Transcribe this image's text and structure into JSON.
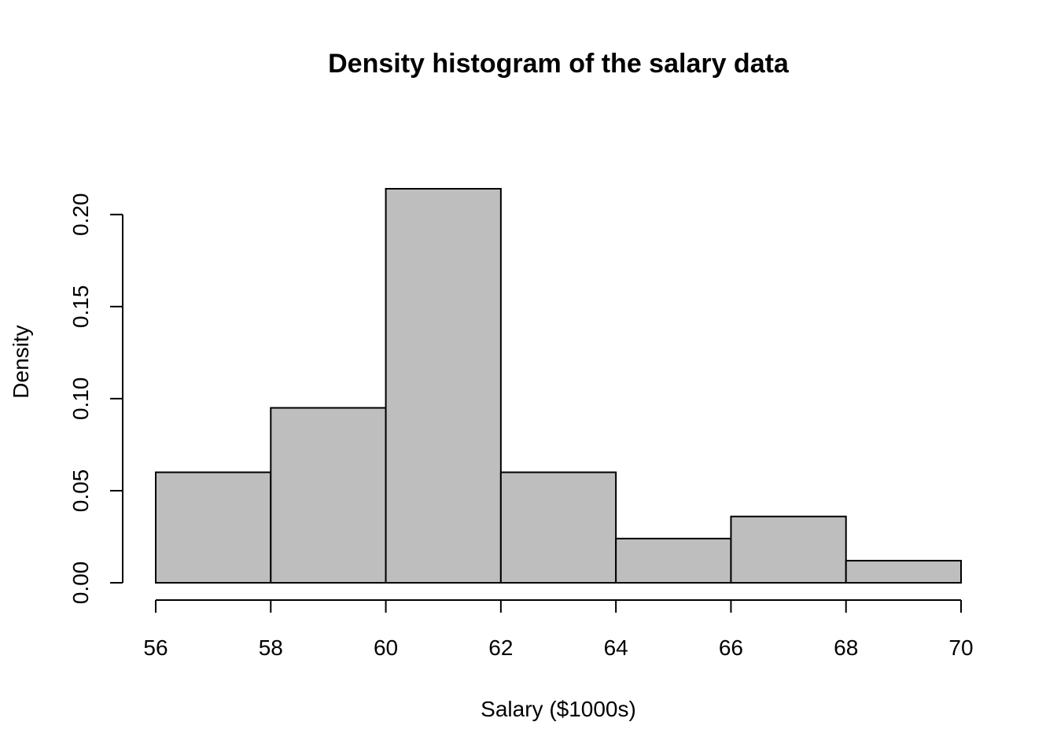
{
  "chart_data": {
    "type": "bar",
    "subtype": "histogram",
    "title": "Density histogram of the salary data",
    "xlabel": "Salary ($1000s)",
    "ylabel": "Density",
    "bins": [
      {
        "start": 56,
        "end": 58,
        "density": 0.06
      },
      {
        "start": 58,
        "end": 60,
        "density": 0.095
      },
      {
        "start": 60,
        "end": 62,
        "density": 0.214
      },
      {
        "start": 62,
        "end": 64,
        "density": 0.06
      },
      {
        "start": 64,
        "end": 66,
        "density": 0.024
      },
      {
        "start": 66,
        "end": 68,
        "density": 0.036
      },
      {
        "start": 68,
        "end": 70,
        "density": 0.012
      }
    ],
    "x_ticks": [
      56,
      58,
      60,
      62,
      64,
      66,
      68,
      70
    ],
    "x_tick_labels": [
      "56",
      "58",
      "60",
      "62",
      "64",
      "66",
      "68",
      "70"
    ],
    "y_ticks": [
      0.0,
      0.05,
      0.1,
      0.15,
      0.2
    ],
    "y_tick_labels": [
      "0.00",
      "0.05",
      "0.10",
      "0.15",
      "0.20"
    ],
    "xlim": [
      56,
      70
    ],
    "ylim": [
      0,
      0.214
    ],
    "grid": false,
    "colors": {
      "bar_fill": "#bebebe",
      "bar_stroke": "#000000"
    }
  }
}
